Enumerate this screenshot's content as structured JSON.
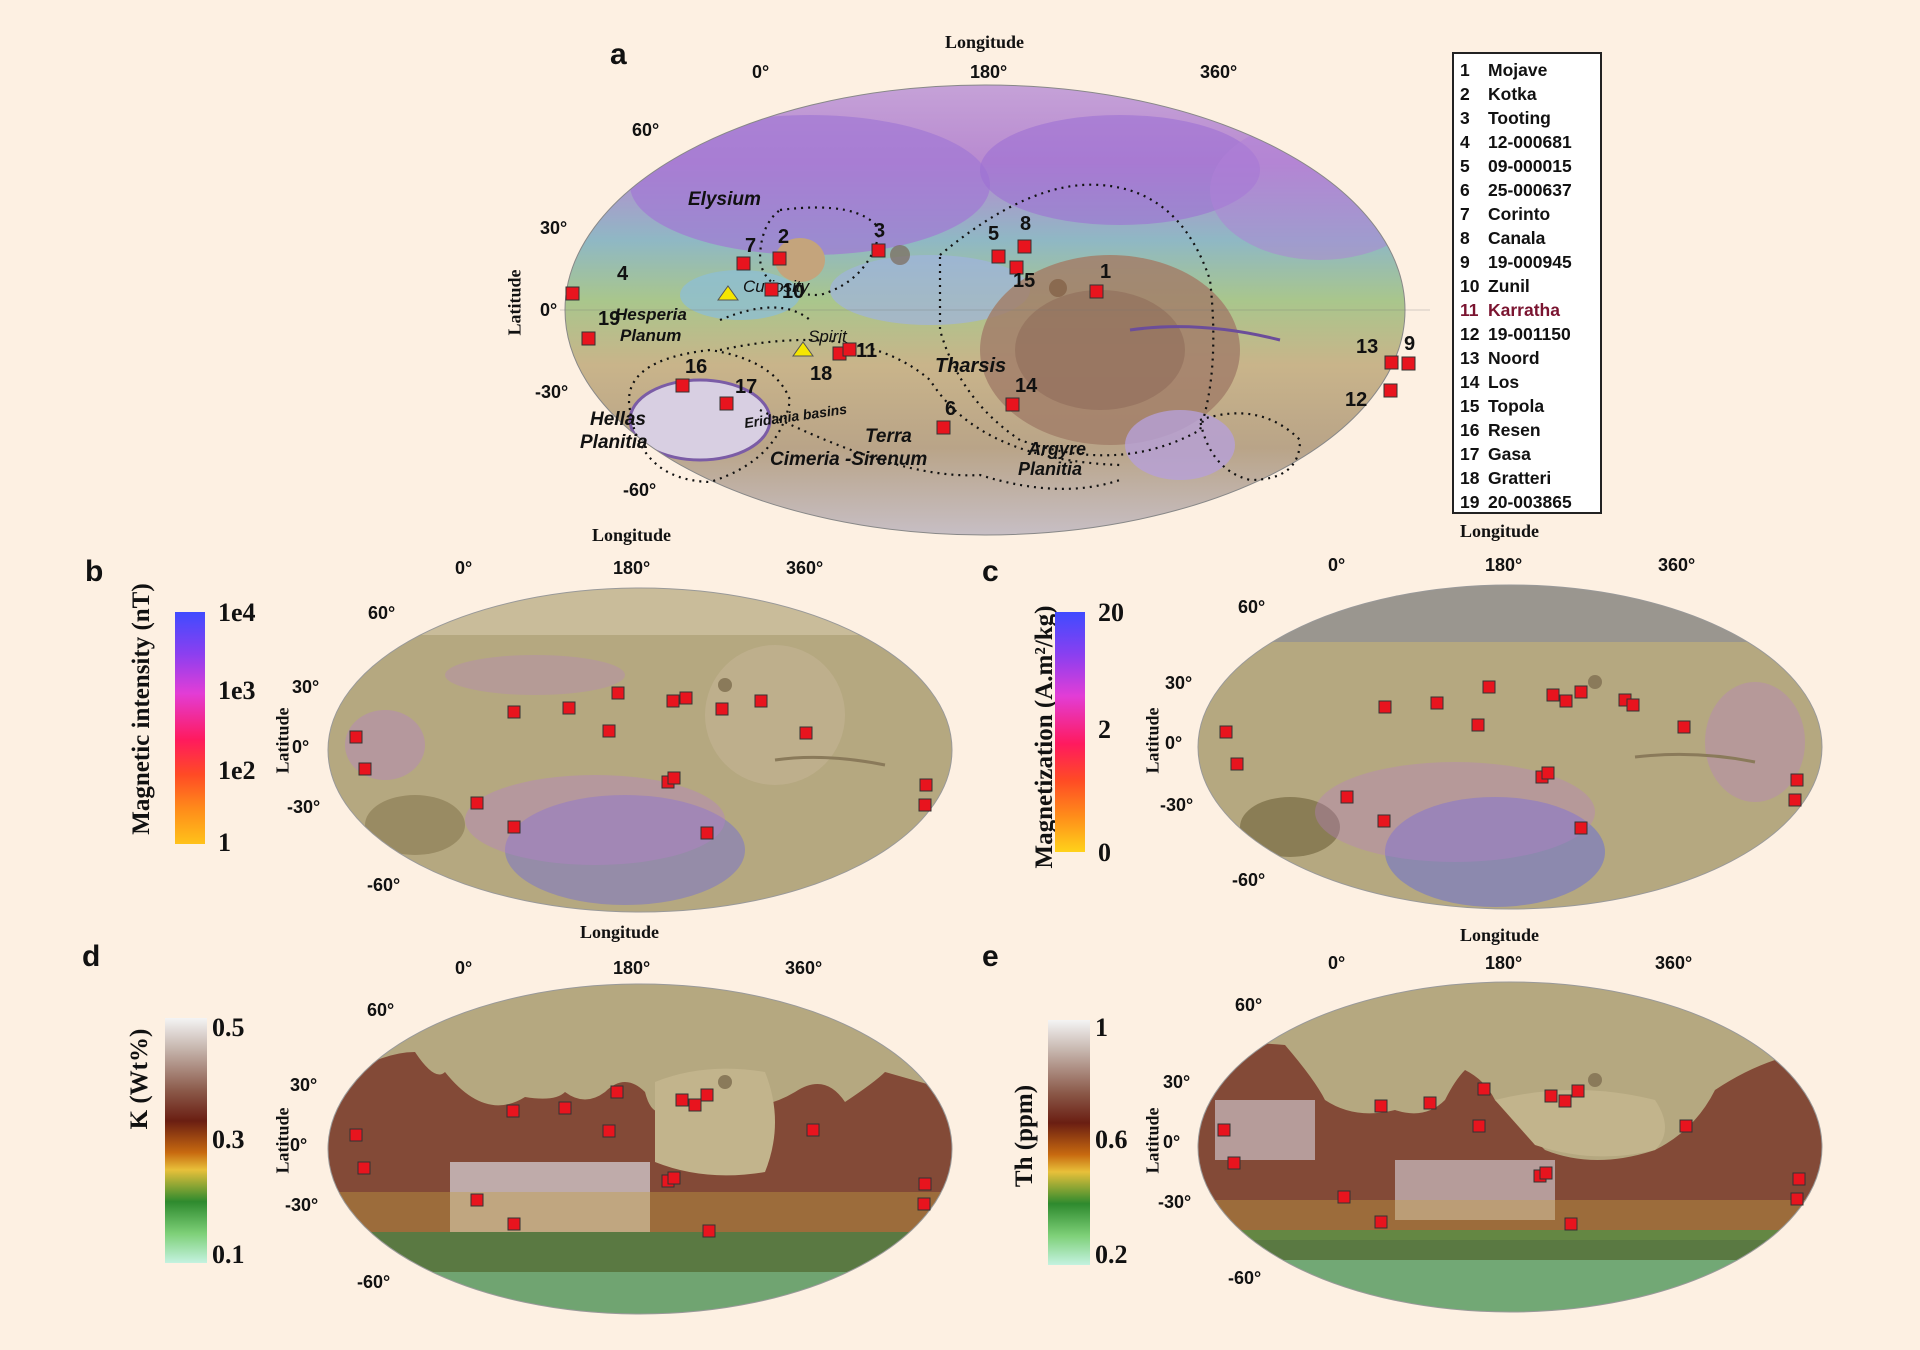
{
  "panels": {
    "a": {
      "letter": "a",
      "lon_title_top": "Longitude",
      "lon_title_bottom": "Longitude",
      "lat_title": "Latitude",
      "lon_ticks": [
        "0°",
        "180°",
        "360°"
      ],
      "lat_ticks": [
        "60°",
        "30°",
        "0°",
        "-30°",
        "-60°"
      ]
    },
    "b": {
      "letter": "b",
      "lon_title": "Longitude",
      "lat_title": "Latitude",
      "lon_ticks": [
        "0°",
        "180°",
        "360°"
      ],
      "lat_ticks": [
        "60°",
        "30°",
        "0°",
        "-30°",
        "-60°"
      ],
      "colorbar": {
        "title": "Magnetic intensity (nT)",
        "ticks": [
          "1e4",
          "1e3",
          "1e2",
          "1"
        ]
      }
    },
    "c": {
      "letter": "c",
      "lon_title": "Longitude",
      "lat_title": "Latitude",
      "lon_ticks": [
        "0°",
        "180°",
        "360°"
      ],
      "lat_ticks": [
        "60°",
        "30°",
        "0°",
        "-30°",
        "-60°"
      ],
      "colorbar": {
        "title": "Magnetization (A.m²/kg)",
        "ticks": [
          "20",
          "2",
          "0"
        ]
      }
    },
    "d": {
      "letter": "d",
      "lat_title": "Latitude",
      "lon_ticks": [
        "0°",
        "180°",
        "360°"
      ],
      "lat_ticks": [
        "60°",
        "30°",
        "0°",
        "-30°",
        "-60°"
      ],
      "colorbar": {
        "title": "K (Wt%)",
        "ticks": [
          "0.5",
          "0.3",
          "0.1"
        ]
      }
    },
    "e": {
      "letter": "e",
      "lon_title": "Longitude",
      "lat_title": "Latitude",
      "lon_ticks": [
        "0°",
        "180°",
        "360°"
      ],
      "lat_ticks": [
        "60°",
        "30°",
        "0°",
        "-30°",
        "-60°"
      ],
      "colorbar": {
        "title": "Th (ppm)",
        "ticks": [
          "1",
          "0.6",
          "0.2"
        ]
      }
    }
  },
  "regions": {
    "elysium": "Elysium",
    "hesperia": "Hesperia\nPlanum",
    "hellas": "Hellas\nPlanitia",
    "eridania": "Eridania basins",
    "terra": "Terra\nCimeria -Sirenum",
    "tharsis": "Tharsis",
    "argyre": "Argyre\nPlanitia",
    "curiosity": "Curiosity",
    "spirit": "Spirit"
  },
  "site_numbers": [
    "1",
    "2",
    "3",
    "4",
    "5",
    "6",
    "7",
    "8",
    "9",
    "10",
    "11",
    "12",
    "13",
    "14",
    "15",
    "16",
    "17",
    "18",
    "19"
  ],
  "legend": [
    {
      "num": "1",
      "name": "Mojave"
    },
    {
      "num": "2",
      "name": "Kotka"
    },
    {
      "num": "3",
      "name": "Tooting"
    },
    {
      "num": "4",
      "name": "12-000681"
    },
    {
      "num": "5",
      "name": "09-000015"
    },
    {
      "num": "6",
      "name": "25-000637"
    },
    {
      "num": "7",
      "name": "Corinto"
    },
    {
      "num": "8",
      "name": "Canala"
    },
    {
      "num": "9",
      "name": "19-000945"
    },
    {
      "num": "10",
      "name": "Zunil"
    },
    {
      "num": "11",
      "name": "Karratha",
      "highlight": true
    },
    {
      "num": "12",
      "name": "19-001150"
    },
    {
      "num": "13",
      "name": "Noord"
    },
    {
      "num": "14",
      "name": "Los"
    },
    {
      "num": "15",
      "name": "Topola"
    },
    {
      "num": "16",
      "name": "Resen"
    },
    {
      "num": "17",
      "name": "Gasa"
    },
    {
      "num": "18",
      "name": "Gratteri"
    },
    {
      "num": "19",
      "name": "20-003865"
    }
  ],
  "colors": {
    "marker": "#e8141e",
    "rover_marker": "#f5e600",
    "background": "#fdf0e2"
  }
}
